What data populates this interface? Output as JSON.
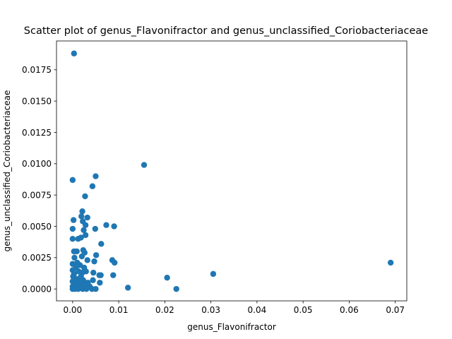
{
  "chart_data": {
    "type": "scatter",
    "title": "Scatter plot of genus_Flavonifractor and genus_unclassified_Coriobacteriaceae",
    "xlabel": "genus_Flavonifractor",
    "ylabel": "genus_unclassified_Coriobacteriaceae",
    "xlim": [
      -0.0035,
      0.0725
    ],
    "ylim": [
      -0.00095,
      0.0198
    ],
    "x_ticks": [
      0.0,
      0.01,
      0.02,
      0.03,
      0.04,
      0.05,
      0.06,
      0.07
    ],
    "x_tick_labels": [
      "0.00",
      "0.01",
      "0.02",
      "0.03",
      "0.04",
      "0.05",
      "0.06",
      "0.07"
    ],
    "y_ticks": [
      0.0,
      0.0025,
      0.005,
      0.0075,
      0.01,
      0.0125,
      0.015,
      0.0175
    ],
    "y_tick_labels": [
      "0.0000",
      "0.0025",
      "0.0050",
      "0.0075",
      "0.0100",
      "0.0125",
      "0.0150",
      "0.0175"
    ],
    "grid": false,
    "marker_color": "#1f77b4",
    "points": [
      [
        0.0003,
        0.0188
      ],
      [
        0.0155,
        0.0099
      ],
      [
        0.005,
        0.009
      ],
      [
        0.0,
        0.0087
      ],
      [
        0.0043,
        0.0082
      ],
      [
        0.0027,
        0.0074
      ],
      [
        0.0021,
        0.0062
      ],
      [
        0.0019,
        0.0058
      ],
      [
        0.0032,
        0.0057
      ],
      [
        0.0002,
        0.0055
      ],
      [
        0.0022,
        0.0054
      ],
      [
        0.0028,
        0.0051
      ],
      [
        0.0073,
        0.0051
      ],
      [
        0.009,
        0.005
      ],
      [
        0.0,
        0.0048
      ],
      [
        0.0024,
        0.0047
      ],
      [
        0.0049,
        0.0048
      ],
      [
        0.0028,
        0.0043
      ],
      [
        0.0,
        0.004
      ],
      [
        0.0012,
        0.004
      ],
      [
        0.0018,
        0.0041
      ],
      [
        0.0062,
        0.0036
      ],
      [
        0.0003,
        0.003
      ],
      [
        0.0009,
        0.003
      ],
      [
        0.0023,
        0.0031
      ],
      [
        0.0026,
        0.0029
      ],
      [
        0.0051,
        0.0027
      ],
      [
        0.0004,
        0.0025
      ],
      [
        0.002,
        0.0026
      ],
      [
        0.0032,
        0.0023
      ],
      [
        0.0047,
        0.0022
      ],
      [
        0.0086,
        0.0023
      ],
      [
        0.0091,
        0.0021
      ],
      [
        0.069,
        0.0021
      ],
      [
        0.0,
        0.002
      ],
      [
        0.001,
        0.0021
      ],
      [
        0.0016,
        0.0019
      ],
      [
        0.0007,
        0.0017
      ],
      [
        0.0025,
        0.0017
      ],
      [
        0.0,
        0.0015
      ],
      [
        0.0013,
        0.0014
      ],
      [
        0.0021,
        0.0013
      ],
      [
        0.0029,
        0.0014
      ],
      [
        0.0045,
        0.0013
      ],
      [
        0.0003,
        0.0012
      ],
      [
        0.0058,
        0.0011
      ],
      [
        0.0061,
        0.0011
      ],
      [
        0.0088,
        0.0011
      ],
      [
        0.0305,
        0.0012
      ],
      [
        0.0205,
        0.0009
      ],
      [
        0.0001,
        0.001
      ],
      [
        0.0018,
        0.001
      ],
      [
        0.0008,
        0.0008
      ],
      [
        0.0023,
        0.0007
      ],
      [
        0.0044,
        0.0007
      ],
      [
        0.0,
        0.0006
      ],
      [
        0.0014,
        0.0006
      ],
      [
        0.0033,
        0.0005
      ],
      [
        0.0059,
        0.0005
      ],
      [
        0.0006,
        0.0004
      ],
      [
        0.002,
        0.0004
      ],
      [
        0.0028,
        0.0003
      ],
      [
        0.0,
        0.0002
      ],
      [
        0.001,
        0.0002
      ],
      [
        0.0017,
        0.0002
      ],
      [
        0.0037,
        0.0002
      ],
      [
        0.0,
        0.0
      ],
      [
        0.0005,
        0.0
      ],
      [
        0.0012,
        0.0
      ],
      [
        0.0022,
        0.0
      ],
      [
        0.003,
        0.0
      ],
      [
        0.0042,
        0.0
      ],
      [
        0.005,
        0.0
      ],
      [
        0.012,
        0.0001
      ],
      [
        0.0225,
        0.0
      ]
    ]
  }
}
